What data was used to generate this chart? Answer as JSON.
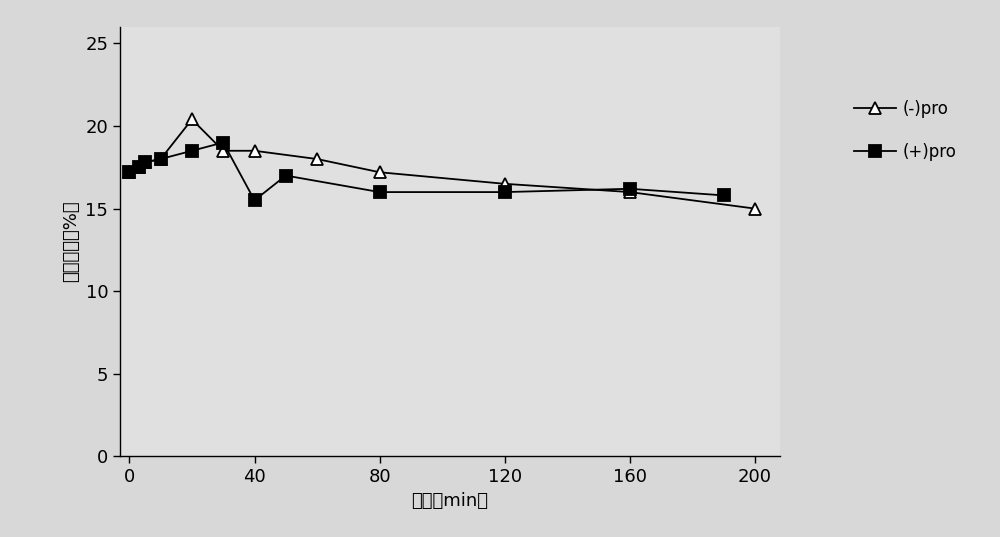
{
  "minus_pro_x": [
    0,
    3,
    5,
    10,
    20,
    30,
    40,
    60,
    80,
    120,
    160,
    200
  ],
  "minus_pro_y": [
    17.2,
    17.5,
    17.8,
    18.0,
    20.4,
    18.5,
    18.5,
    18.0,
    17.2,
    16.5,
    16.0,
    15.0
  ],
  "plus_pro_x": [
    0,
    3,
    5,
    10,
    20,
    30,
    40,
    50,
    80,
    120,
    160,
    190
  ],
  "plus_pro_y": [
    17.2,
    17.5,
    17.8,
    18.0,
    18.5,
    19.0,
    15.5,
    17.0,
    16.0,
    16.0,
    16.2,
    15.8
  ],
  "xlabel": "时间（min）",
  "ylabel": "恢复活性（%）",
  "xlim": [
    -3,
    208
  ],
  "ylim": [
    0,
    26
  ],
  "xticks": [
    0,
    40,
    80,
    120,
    160,
    200
  ],
  "yticks": [
    0,
    5,
    10,
    15,
    20,
    25
  ],
  "minus_pro_label": "(-)pro",
  "plus_pro_label": "(+)pro",
  "line_color": "#000000",
  "bg_color": "#e8e8e8"
}
